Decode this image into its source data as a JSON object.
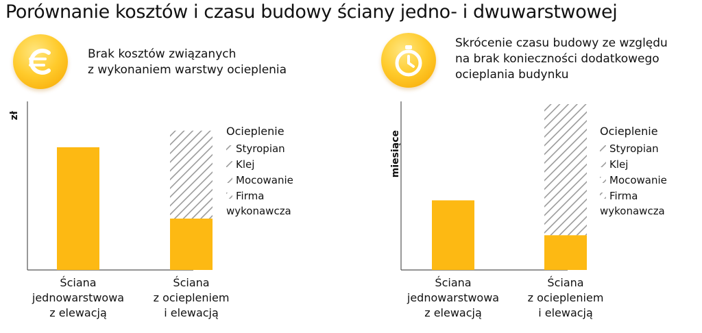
{
  "page": {
    "title": "Porównanie kosztów i czasu budowy ściany jedno- i dwuwarstwowej"
  },
  "left_panel": {
    "icon": "euro-coin-icon",
    "description": [
      "Brak kosztów związanych",
      "z wykonaniem warstwy ocieplenia"
    ]
  },
  "right_panel": {
    "icon": "stopwatch-coin-icon",
    "description": [
      "Skrócenie czasu budowy ze względu",
      "na brak konieczności dodatkowego",
      "ocieplania budynku"
    ]
  },
  "colors": {
    "bar": "#FDB913",
    "hatch": "#9A9A9A",
    "coin": "#FFC61A",
    "axis": "#555555"
  },
  "chart_data": [
    {
      "type": "bar",
      "stacked": true,
      "ylabel": "zł",
      "ylim": [
        0,
        100
      ],
      "categories": [
        [
          "Ściana",
          "jednowarstwowa",
          "z elewacją"
        ],
        [
          "Ściana",
          "z ociepleniem",
          "i elewacją"
        ]
      ],
      "series": [
        {
          "name": "",
          "pattern": "solid",
          "values": [
            74,
            31
          ]
        },
        {
          "name": "Ocieplenie",
          "pattern": "hatched",
          "values": [
            0,
            53
          ]
        }
      ],
      "legend": {
        "title": "Ocieplenie",
        "items": [
          "Styropian",
          "Klej",
          "Mocowanie",
          [
            "Firma",
            "wykonawcza"
          ]
        ],
        "placement": "right"
      }
    },
    {
      "type": "bar",
      "stacked": true,
      "ylabel": "miesiące",
      "ylim": [
        0,
        100
      ],
      "categories": [
        [
          "Ściana",
          "jednowarstwowa",
          "z elewacją"
        ],
        [
          "Ściana",
          "z ociepleniem",
          "i elewacją"
        ]
      ],
      "series": [
        {
          "name": "",
          "pattern": "solid",
          "values": [
            42,
            21
          ]
        },
        {
          "name": "Ocieplenie",
          "pattern": "hatched",
          "values": [
            0,
            79
          ]
        }
      ],
      "legend": {
        "title": "Ocieplenie",
        "items": [
          "Styropian",
          "Klej",
          "Mocowanie",
          [
            "Firma",
            "wykonawcza"
          ]
        ],
        "placement": "right"
      }
    }
  ]
}
